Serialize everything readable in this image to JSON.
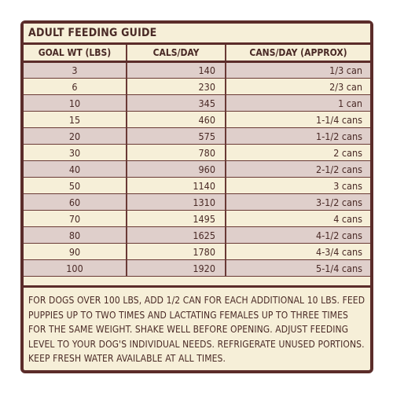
{
  "title": "ADULT FEEDING GUIDE",
  "columns": [
    "GOAL WT (LBS)",
    "CALS/DAY",
    "CANS/DAY (APPROX)"
  ],
  "rows": [
    [
      "3",
      "140",
      "1/3 can"
    ],
    [
      "6",
      "230",
      "2/3 can"
    ],
    [
      "10",
      "345",
      "1 can"
    ],
    [
      "15",
      "460",
      "1-1/4 cans"
    ],
    [
      "20",
      "575",
      "1-1/2 cans"
    ],
    [
      "30",
      "780",
      "2 cans"
    ],
    [
      "40",
      "960",
      "2-1/2 cans"
    ],
    [
      "50",
      "1140",
      "3 cans"
    ],
    [
      "60",
      "1310",
      "3-1/2 cans"
    ],
    [
      "70",
      "1495",
      "4 cans"
    ],
    [
      "80",
      "1625",
      "4-1/2 cans"
    ],
    [
      "90",
      "1780",
      "4-3/4 cans"
    ],
    [
      "100",
      "1920",
      "5-1/4 cans"
    ]
  ],
  "note": "FOR DOGS OVER 100 LBS, ADD 1/2 CAN FOR EACH ADDITIONAL 10 LBS. FEED PUPPIES UP TO TWO TIMES AND LACTATING FEMALES UP TO THREE TIMES FOR THE SAME WEIGHT. SHAKE WELL BEFORE OPENING. ADJUST FEEDING LEVEL TO YOUR DOG'S INDIVIDUAL NEEDS. REFRIGERATE UNUSED PORTIONS. KEEP FRESH WATER AVAILABLE AT ALL TIMES.",
  "colors": {
    "border": "#5b2c2a",
    "background": "#f6efd8",
    "row_stripe": "#dfcfcb",
    "text": "#4a2a26"
  }
}
